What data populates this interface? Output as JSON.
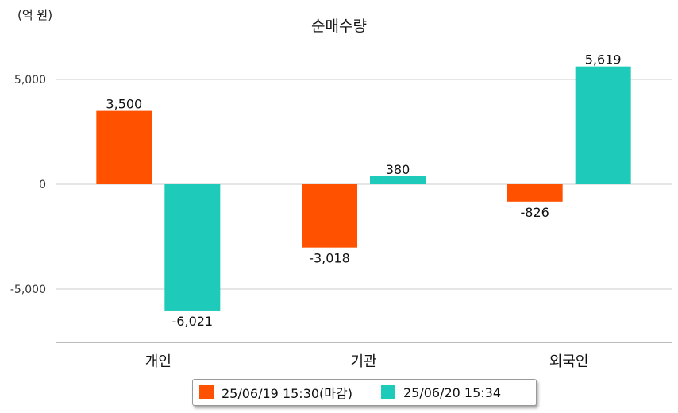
{
  "chart_data": {
    "type": "bar",
    "title": "순매수량",
    "unit_label": "(억 원)",
    "categories": [
      "개인",
      "기관",
      "외국인"
    ],
    "series": [
      {
        "name": "25/06/19 15:30(마감)",
        "color": "#ff5100",
        "values": [
          3500,
          -3018,
          -826
        ],
        "labels": [
          "3,500",
          "-3,018",
          "-826"
        ]
      },
      {
        "name": "25/06/20 15:34",
        "color": "#1ecbbb",
        "values": [
          -6021,
          380,
          5619
        ],
        "labels": [
          "-6,021",
          "380",
          "5,619"
        ]
      }
    ],
    "yticks": [
      5000,
      0,
      -5000
    ],
    "ytick_labels": [
      "5,000",
      "0",
      "-5,000"
    ],
    "ylim": [
      -7500,
      7500
    ],
    "grid": true,
    "legend_position": "bottom"
  }
}
